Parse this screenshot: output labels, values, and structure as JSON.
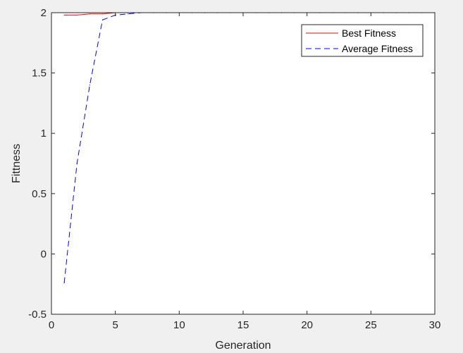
{
  "chart_data": {
    "type": "line",
    "title": "",
    "xlabel": "Generation",
    "ylabel": "Fittness",
    "xlim": [
      0,
      30
    ],
    "ylim": [
      -0.5,
      2
    ],
    "xticks": [
      "0",
      "5",
      "10",
      "15",
      "20",
      "25",
      "30"
    ],
    "yticks": [
      "-0.5",
      "0",
      "0.5",
      "1",
      "1.5",
      "2"
    ],
    "grid": false,
    "legend_position": "top-right",
    "series": [
      {
        "name": "Best Fitness",
        "color": "#ff0000",
        "style": "solid",
        "x": [
          1,
          2,
          3,
          4,
          5,
          6,
          7,
          8,
          9,
          10,
          11,
          12,
          13,
          14,
          15,
          16,
          17,
          18,
          19,
          20,
          21,
          22,
          23,
          24,
          25,
          26,
          27,
          28,
          29,
          30
        ],
        "values": [
          1.98,
          1.98,
          1.99,
          1.99,
          2,
          2,
          2,
          2,
          2,
          2,
          2,
          2,
          2,
          2,
          2,
          2,
          2,
          2,
          2,
          2,
          2,
          2,
          2,
          2,
          2,
          2,
          2,
          2,
          2,
          2
        ]
      },
      {
        "name": "Average Fitness",
        "color": "#0000ff",
        "style": "dashed",
        "x": [
          1,
          2,
          3,
          4,
          5,
          6,
          7,
          8,
          9,
          10,
          11,
          12,
          13,
          14,
          15,
          16,
          17,
          18,
          19,
          20,
          21,
          22,
          23,
          24,
          25,
          26,
          27,
          28,
          29,
          30
        ],
        "values": [
          -0.24,
          0.75,
          1.4,
          1.94,
          1.98,
          1.99,
          2,
          2,
          2,
          2,
          2,
          2,
          2,
          2,
          2,
          2,
          2,
          2,
          2,
          2,
          2,
          2,
          2,
          2,
          2,
          2,
          2,
          2,
          2,
          2
        ]
      }
    ]
  }
}
